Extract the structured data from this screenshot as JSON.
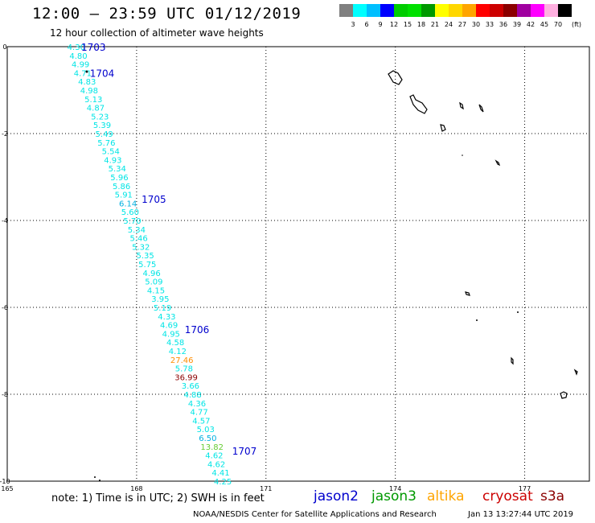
{
  "header": {
    "title": "12:00 – 23:59 UTC 01/12/2019",
    "subtitle": "12 hour collection of altimeter wave heights"
  },
  "colorbar": {
    "colors": [
      "#808080",
      "#00ffff",
      "#00bfff",
      "#0000ff",
      "#00cd00",
      "#00e000",
      "#009900",
      "#ffff00",
      "#ffd700",
      "#ffa500",
      "#ff0000",
      "#cd0000",
      "#8b0000",
      "#a000a0",
      "#ff00ff",
      "#ffb0e0",
      "#000000"
    ],
    "labels": [
      "3",
      "6",
      "9",
      "12",
      "15",
      "18",
      "21",
      "24",
      "27",
      "30",
      "33",
      "36",
      "39",
      "42",
      "45",
      "70",
      "(ft)"
    ]
  },
  "map": {
    "lat_ticks": [
      "0",
      "-2",
      "-4",
      "-6",
      "-8",
      "-10"
    ],
    "lon_ticks": [
      "165",
      "168",
      "171",
      "174",
      "177"
    ]
  },
  "track_markers": [
    {
      "label": "1703",
      "lon": 167.0,
      "lat": 0.0
    },
    {
      "label": "1704",
      "lon": 167.2,
      "lat": -0.6
    },
    {
      "label": "1705",
      "lon": 168.4,
      "lat": -3.5
    },
    {
      "label": "1706",
      "lon": 169.4,
      "lat": -6.5
    },
    {
      "label": "1707",
      "lon": 170.5,
      "lat": -9.3
    }
  ],
  "observations": [
    {
      "value": "4.30",
      "lon": 166.6,
      "lat": 0.0,
      "color": "#00e5e5"
    },
    {
      "value": "4.80",
      "lon": 166.65,
      "lat": -0.2,
      "color": "#00e5e5"
    },
    {
      "value": "4.99",
      "lon": 166.7,
      "lat": -0.4,
      "color": "#00e5e5"
    },
    {
      "value": "4.71",
      "lon": 166.75,
      "lat": -0.6,
      "color": "#00e5e5"
    },
    {
      "value": "4.83",
      "lon": 166.85,
      "lat": -0.8,
      "color": "#00e5e5"
    },
    {
      "value": "4.98",
      "lon": 166.9,
      "lat": -1.0,
      "color": "#00e5e5"
    },
    {
      "value": "5.13",
      "lon": 167.0,
      "lat": -1.2,
      "color": "#00e5e5"
    },
    {
      "value": "4.87",
      "lon": 167.05,
      "lat": -1.4,
      "color": "#00e5e5"
    },
    {
      "value": "5.23",
      "lon": 167.15,
      "lat": -1.6,
      "color": "#00e5e5"
    },
    {
      "value": "5.39",
      "lon": 167.2,
      "lat": -1.8,
      "color": "#00e5e5"
    },
    {
      "value": "5.49",
      "lon": 167.25,
      "lat": -2.0,
      "color": "#00e5e5"
    },
    {
      "value": "5.76",
      "lon": 167.3,
      "lat": -2.2,
      "color": "#00e5e5"
    },
    {
      "value": "5.54",
      "lon": 167.4,
      "lat": -2.4,
      "color": "#00e5e5"
    },
    {
      "value": "4.93",
      "lon": 167.45,
      "lat": -2.6,
      "color": "#00e5e5"
    },
    {
      "value": "5.34",
      "lon": 167.55,
      "lat": -2.8,
      "color": "#00e5e5"
    },
    {
      "value": "5.96",
      "lon": 167.6,
      "lat": -3.0,
      "color": "#00e5e5"
    },
    {
      "value": "5.86",
      "lon": 167.65,
      "lat": -3.2,
      "color": "#00e5e5"
    },
    {
      "value": "5.91",
      "lon": 167.7,
      "lat": -3.4,
      "color": "#00e5e5"
    },
    {
      "value": "6.14",
      "lon": 167.8,
      "lat": -3.6,
      "color": "#00b0e0"
    },
    {
      "value": "5.60",
      "lon": 167.85,
      "lat": -3.8,
      "color": "#00e5e5"
    },
    {
      "value": "5.70",
      "lon": 167.9,
      "lat": -4.0,
      "color": "#00e5e5"
    },
    {
      "value": "5.34",
      "lon": 168.0,
      "lat": -4.2,
      "color": "#00e5e5"
    },
    {
      "value": "5.46",
      "lon": 168.05,
      "lat": -4.4,
      "color": "#00e5e5"
    },
    {
      "value": "5.32",
      "lon": 168.1,
      "lat": -4.6,
      "color": "#00e5e5"
    },
    {
      "value": "5.35",
      "lon": 168.2,
      "lat": -4.8,
      "color": "#00e5e5"
    },
    {
      "value": "5.75",
      "lon": 168.25,
      "lat": -5.0,
      "color": "#00e5e5"
    },
    {
      "value": "4.96",
      "lon": 168.35,
      "lat": -5.2,
      "color": "#00e5e5"
    },
    {
      "value": "5.09",
      "lon": 168.4,
      "lat": -5.4,
      "color": "#00e5e5"
    },
    {
      "value": "4.15",
      "lon": 168.45,
      "lat": -5.6,
      "color": "#00e5e5"
    },
    {
      "value": "3.95",
      "lon": 168.55,
      "lat": -5.8,
      "color": "#00e5e5"
    },
    {
      "value": "5.19",
      "lon": 168.6,
      "lat": -6.0,
      "color": "#00e5e5"
    },
    {
      "value": "4.33",
      "lon": 168.7,
      "lat": -6.2,
      "color": "#00e5e5"
    },
    {
      "value": "4.69",
      "lon": 168.75,
      "lat": -6.4,
      "color": "#00e5e5"
    },
    {
      "value": "4.95",
      "lon": 168.8,
      "lat": -6.6,
      "color": "#00e5e5"
    },
    {
      "value": "4.58",
      "lon": 168.9,
      "lat": -6.8,
      "color": "#00e5e5"
    },
    {
      "value": "4.12",
      "lon": 168.95,
      "lat": -7.0,
      "color": "#00e5e5"
    },
    {
      "value": "27.46",
      "lon": 169.05,
      "lat": -7.2,
      "color": "#ff8c00"
    },
    {
      "value": "5.78",
      "lon": 169.1,
      "lat": -7.4,
      "color": "#00e5e5"
    },
    {
      "value": "36.99",
      "lon": 169.15,
      "lat": -7.6,
      "color": "#8b0000"
    },
    {
      "value": "3.66",
      "lon": 169.25,
      "lat": -7.8,
      "color": "#00e5e5"
    },
    {
      "value": "4.88",
      "lon": 169.3,
      "lat": -8.0,
      "color": "#00e5e5"
    },
    {
      "value": "4.36",
      "lon": 169.4,
      "lat": -8.2,
      "color": "#00e5e5"
    },
    {
      "value": "4.77",
      "lon": 169.45,
      "lat": -8.4,
      "color": "#00e5e5"
    },
    {
      "value": "4.57",
      "lon": 169.5,
      "lat": -8.6,
      "color": "#00e5e5"
    },
    {
      "value": "5.03",
      "lon": 169.6,
      "lat": -8.8,
      "color": "#00e5e5"
    },
    {
      "value": "6.50",
      "lon": 169.65,
      "lat": -9.0,
      "color": "#00b0e0"
    },
    {
      "value": "13.82",
      "lon": 169.75,
      "lat": -9.2,
      "color": "#66cc33"
    },
    {
      "value": "4.62",
      "lon": 169.8,
      "lat": -9.4,
      "color": "#00e5e5"
    },
    {
      "value": "4.62",
      "lon": 169.85,
      "lat": -9.6,
      "color": "#00e5e5"
    },
    {
      "value": "4.41",
      "lon": 169.95,
      "lat": -9.8,
      "color": "#00e5e5"
    },
    {
      "value": "4.25",
      "lon": 170.0,
      "lat": -10.0,
      "color": "#00e5e5"
    }
  ],
  "note": "note:  1) Time is in UTC;  2) SWH is in feet",
  "legend": [
    {
      "name": "jason2",
      "color": "#0000cd"
    },
    {
      "name": "jason3",
      "color": "#009900"
    },
    {
      "name": "altika",
      "color": "#ffa500"
    },
    {
      "name": "cryosat",
      "color": "#cc0000"
    },
    {
      "name": "s3a",
      "color": "#8b0000"
    }
  ],
  "footer": {
    "credit": "NOAA/NESDIS Center for Satellite Applications and Research",
    "timestamp": "Jan 13 13:27:44 UTC 2019"
  }
}
